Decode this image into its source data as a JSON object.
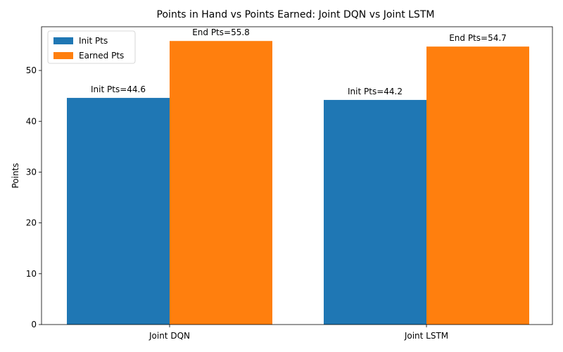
{
  "chart_data": {
    "type": "bar",
    "title": "Points in Hand vs Points Earned: Joint DQN vs Joint LSTM",
    "xlabel": "",
    "ylabel": "Points",
    "categories": [
      "Joint DQN",
      "Joint LSTM"
    ],
    "series": [
      {
        "name": "Init Pts",
        "values": [
          44.6,
          44.2
        ],
        "labels": [
          "Init Pts=44.6",
          "Init Pts=44.2"
        ],
        "color": "#1f77b4"
      },
      {
        "name": "Earned Pts",
        "values": [
          55.8,
          54.7
        ],
        "labels": [
          "End Pts=55.8",
          "End Pts=54.7"
        ],
        "color": "#ff7f0e"
      }
    ],
    "ylim": [
      0,
      58.6
    ],
    "yticks": [
      0,
      10,
      20,
      30,
      40,
      50
    ],
    "ytick_labels": [
      "0",
      "10",
      "20",
      "30",
      "40",
      "50"
    ],
    "legend_position": "top-left",
    "grid": false
  }
}
